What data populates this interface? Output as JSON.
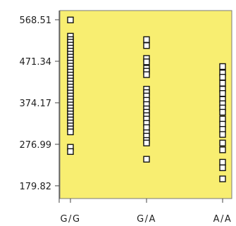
{
  "chart_data": {
    "type": "scatter",
    "title": "",
    "xlabel": "",
    "ylabel": "",
    "categories": [
      "G/G",
      "G/A",
      "A/A"
    ],
    "y_ticks": [
      "568.51",
      "471.34",
      "374.17",
      "276.99",
      "179.82"
    ],
    "y_tick_values": [
      568.51,
      471.34,
      374.17,
      276.99,
      179.82
    ],
    "ylim": [
      150,
      590
    ],
    "grid": false,
    "legend": "none",
    "colors": {
      "plot_background": "#f8ee71",
      "marker_stroke": "#111111",
      "marker_fill": "#ffffff",
      "frame": "#7a7a7a",
      "axis": "#444444"
    },
    "series": [
      {
        "category": "G/G",
        "values": [
          568,
          530,
          522,
          516,
          509,
          502,
          495,
          488,
          481,
          474,
          467,
          460,
          453,
          446,
          439,
          432,
          425,
          418,
          411,
          404,
          397,
          390,
          383,
          376,
          369,
          362,
          355,
          348,
          341,
          334,
          327,
          320,
          313,
          306,
          270,
          260
        ]
      },
      {
        "category": "G/A",
        "values": [
          522,
          508,
          478,
          470,
          455,
          448,
          440,
          406,
          398,
          390,
          380,
          370,
          360,
          352,
          344,
          336,
          326,
          316,
          304,
          296,
          286,
          280,
          242
        ]
      },
      {
        "category": "A/A",
        "values": [
          459,
          444,
          434,
          420,
          406,
          396,
          382,
          372,
          362,
          352,
          336,
          324,
          312,
          300,
          280,
          264,
          235,
          222,
          196
        ]
      }
    ]
  }
}
